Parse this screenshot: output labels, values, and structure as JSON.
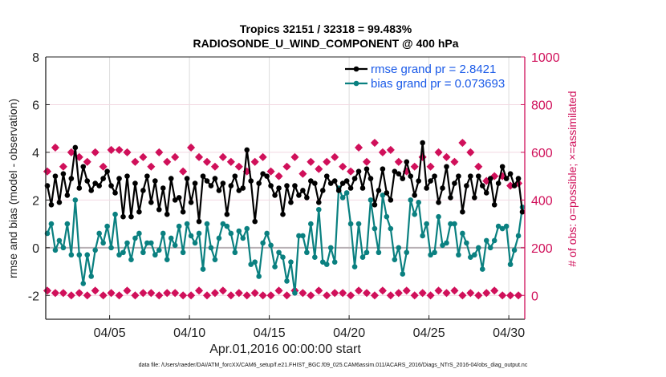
{
  "chart_data": {
    "type": "line",
    "title": "Tropics 32151 / 32318 = 99.483%",
    "subtitle": "RADIOSONDE_U_WIND_COMPONENT @ 400 hPa",
    "xlabel": "Apr.01,2016 00:00:00 start",
    "ylabel": "rmse and bias (model - observation)",
    "y2label": "# of obs: o=possible; ×=assimilated",
    "xlim_days": [
      0,
      30
    ],
    "ylim": [
      -3,
      8
    ],
    "y2lim": [
      -100,
      1000
    ],
    "yticks": [
      "-2",
      "0",
      "2",
      "4",
      "6",
      "8"
    ],
    "yticks_values": [
      -2,
      0,
      2,
      4,
      6,
      8
    ],
    "y2ticks": [
      "0",
      "200",
      "400",
      "600",
      "800",
      "1000"
    ],
    "y2ticks_values": [
      0,
      200,
      400,
      600,
      800,
      1000
    ],
    "xticks": [
      "04/05",
      "04/10",
      "04/15",
      "04/20",
      "04/25",
      "04/30"
    ],
    "xticks_days": [
      4,
      9,
      14,
      19,
      24,
      29
    ],
    "grid": true,
    "legend_position": "top-right",
    "x_step_days": 0.25,
    "obs_step_days": 0.5,
    "series": [
      {
        "name": "rmse grand pr = 2.8421",
        "color": "#000000",
        "axis": "left",
        "values": [
          2.6,
          1.8,
          3.0,
          1.9,
          3.1,
          2.2,
          2.9,
          4.2,
          2.5,
          3.4,
          2.8,
          2.4,
          2.7,
          2.6,
          2.9,
          3.2,
          2.6,
          2.3,
          2.9,
          1.3,
          3.0,
          1.3,
          2.7,
          1.5,
          2.4,
          3.0,
          1.9,
          2.8,
          1.6,
          2.5,
          1.4,
          2.9,
          2.0,
          2.1,
          1.5,
          2.9,
          1.9,
          2.7,
          1.1,
          3.0,
          2.8,
          2.6,
          2.9,
          2.4,
          2.7,
          1.4,
          2.6,
          3.0,
          2.4,
          2.5,
          4.1,
          2.8,
          1.1,
          2.7,
          3.1,
          3.0,
          2.6,
          2.2,
          2.5,
          1.4,
          2.6,
          1.9,
          2.6,
          2.2,
          2.4,
          2.1,
          2.8,
          2.7,
          1.9,
          2.4,
          3.0,
          2.7,
          2.8,
          2.4,
          2.7,
          2.8,
          2.5,
          2.9,
          3.2,
          2.5,
          3.3,
          2.9,
          1.8,
          2.4,
          3.3,
          2.3,
          2.0,
          3.2,
          3.1,
          2.9,
          3.6,
          3.0,
          2.2,
          2.8,
          4.4,
          2.5,
          2.8,
          3.0,
          1.9,
          2.5,
          3.4,
          2.1,
          2.7,
          3.0,
          1.5,
          2.6,
          3.0,
          2.1,
          3.0,
          2.6,
          2.3,
          2.9,
          1.8,
          2.7,
          3.4,
          2.9,
          3.1,
          2.6,
          2.9,
          1.5
        ],
        "note": "approximate 6-hourly values read from the figure"
      },
      {
        "name": "bias grand pr = 0.073693",
        "color": "#0a8080",
        "axis": "left",
        "values": [
          0.6,
          1.0,
          -0.1,
          0.3,
          0.0,
          1.0,
          -0.3,
          2.0,
          -0.3,
          -1.5,
          -0.3,
          -1.2,
          -0.1,
          0.6,
          0.2,
          0.9,
          0.0,
          1.4,
          -0.3,
          -0.2,
          0.2,
          -0.5,
          0.4,
          0.6,
          -0.2,
          0.2,
          0.2,
          -0.3,
          -0.1,
          0.6,
          -0.5,
          0.4,
          0.1,
          0.9,
          -0.2,
          1.0,
          0.5,
          0.2,
          0.6,
          -0.9,
          1.0,
          0.0,
          -0.5,
          0.4,
          1.0,
          0.9,
          0.6,
          -0.2,
          0.7,
          0.4,
          0.8,
          -0.7,
          -0.6,
          -1.2,
          0.2,
          0.6,
          0.1,
          -0.8,
          -0.2,
          -0.4,
          -1.4,
          -0.6,
          -1.9,
          0.5,
          0.5,
          -0.2,
          1.0,
          -0.4,
          1.6,
          -0.6,
          -0.7,
          0.0,
          -0.6,
          2.5,
          2.1,
          2.3,
          1.0,
          -0.8,
          1.0,
          -0.4,
          -0.2,
          2.0,
          0.8,
          -0.2,
          2.2,
          1.3,
          0.8,
          -0.5,
          0.0,
          -1.1,
          -0.2,
          2.0,
          1.4,
          1.9,
          0.5,
          1.0,
          -0.3,
          -0.2,
          1.3,
          0.1,
          0.2,
          1.0,
          1.0,
          -0.3,
          0.6,
          0.2,
          -0.4,
          -0.3,
          0.0,
          -0.9,
          0.3,
          0.0,
          0.3,
          0.9,
          0.8,
          0.9,
          -0.7,
          -0.1,
          0.5,
          1.7
        ],
        "note": "approximate 6-hourly values read from the figure"
      },
      {
        "name": "# obs possible",
        "color": "#d0105a",
        "axis": "right",
        "marker": "o",
        "values": [
          520,
          620,
          540,
          600,
          580,
          560,
          600,
          540,
          610,
          610,
          600,
          560,
          580,
          540,
          600,
          560,
          580,
          520,
          620,
          580,
          560,
          540,
          580,
          560,
          540,
          520,
          560,
          580,
          520,
          500,
          540,
          580,
          510,
          560,
          530,
          560,
          580,
          540,
          520,
          620,
          560,
          640,
          600,
          610,
          560,
          520,
          540,
          580,
          540,
          600,
          580,
          560,
          640,
          600,
          540,
          480,
          500,
          500,
          460,
          470
        ]
      },
      {
        "name": "# obs assimilated",
        "color": "#d0105a",
        "axis": "right",
        "marker": "x",
        "values": [
          20,
          10,
          10,
          0,
          10,
          0,
          20,
          0,
          10,
          0,
          20,
          0,
          10,
          10,
          0,
          10,
          10,
          0,
          0,
          20,
          0,
          10,
          20,
          0,
          10,
          0,
          10,
          0,
          0,
          20,
          0,
          20,
          10,
          0,
          20,
          0,
          10,
          10,
          0,
          20,
          10,
          0,
          20,
          0,
          10,
          20,
          0,
          10,
          0,
          20,
          10,
          20,
          0,
          10,
          0,
          10,
          20,
          0,
          0,
          0
        ]
      }
    ]
  },
  "footnote": "data file: /Users/raeder/DAI/ATM_forcXX/CAM6_setup/f.e21.FHIST_BGC.f09_025.CAM6assim.011/ACARS_2016/Diags_NTrS_2016-04/obs_diag_output.nc"
}
